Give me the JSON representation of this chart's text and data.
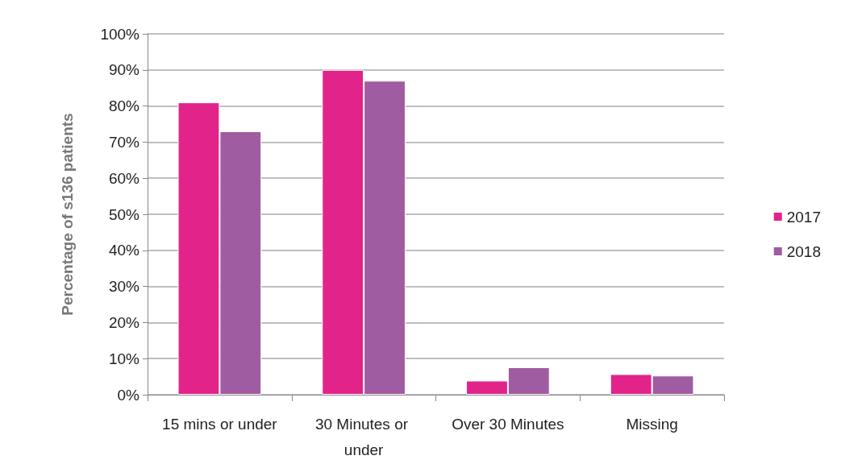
{
  "chart_data": {
    "type": "bar",
    "ylabel": "Percentage of s136 patients",
    "categories": [
      "15 mins or under",
      "30 Minutes or under",
      "Over 30 Minutes",
      "Missing"
    ],
    "series": [
      {
        "name": "2017",
        "color": "#e2238a",
        "values": [
          81,
          90,
          3.9,
          5.7
        ]
      },
      {
        "name": "2018",
        "color": "#a05ca0",
        "values": [
          73,
          87,
          7.6,
          5.3
        ]
      }
    ],
    "ylim": [
      0,
      100
    ],
    "yticks": [
      {
        "value": 0,
        "label": "0%"
      },
      {
        "value": 10,
        "label": "10%"
      },
      {
        "value": 20,
        "label": "20%"
      },
      {
        "value": 30,
        "label": "30%"
      },
      {
        "value": 40,
        "label": "40%"
      },
      {
        "value": 50,
        "label": "50%"
      },
      {
        "value": 60,
        "label": "60%"
      },
      {
        "value": 70,
        "label": "70%"
      },
      {
        "value": 80,
        "label": "80%"
      },
      {
        "value": 90,
        "label": "90%"
      },
      {
        "value": 100,
        "label": "100%"
      }
    ],
    "grid": "y",
    "legend": "right"
  }
}
